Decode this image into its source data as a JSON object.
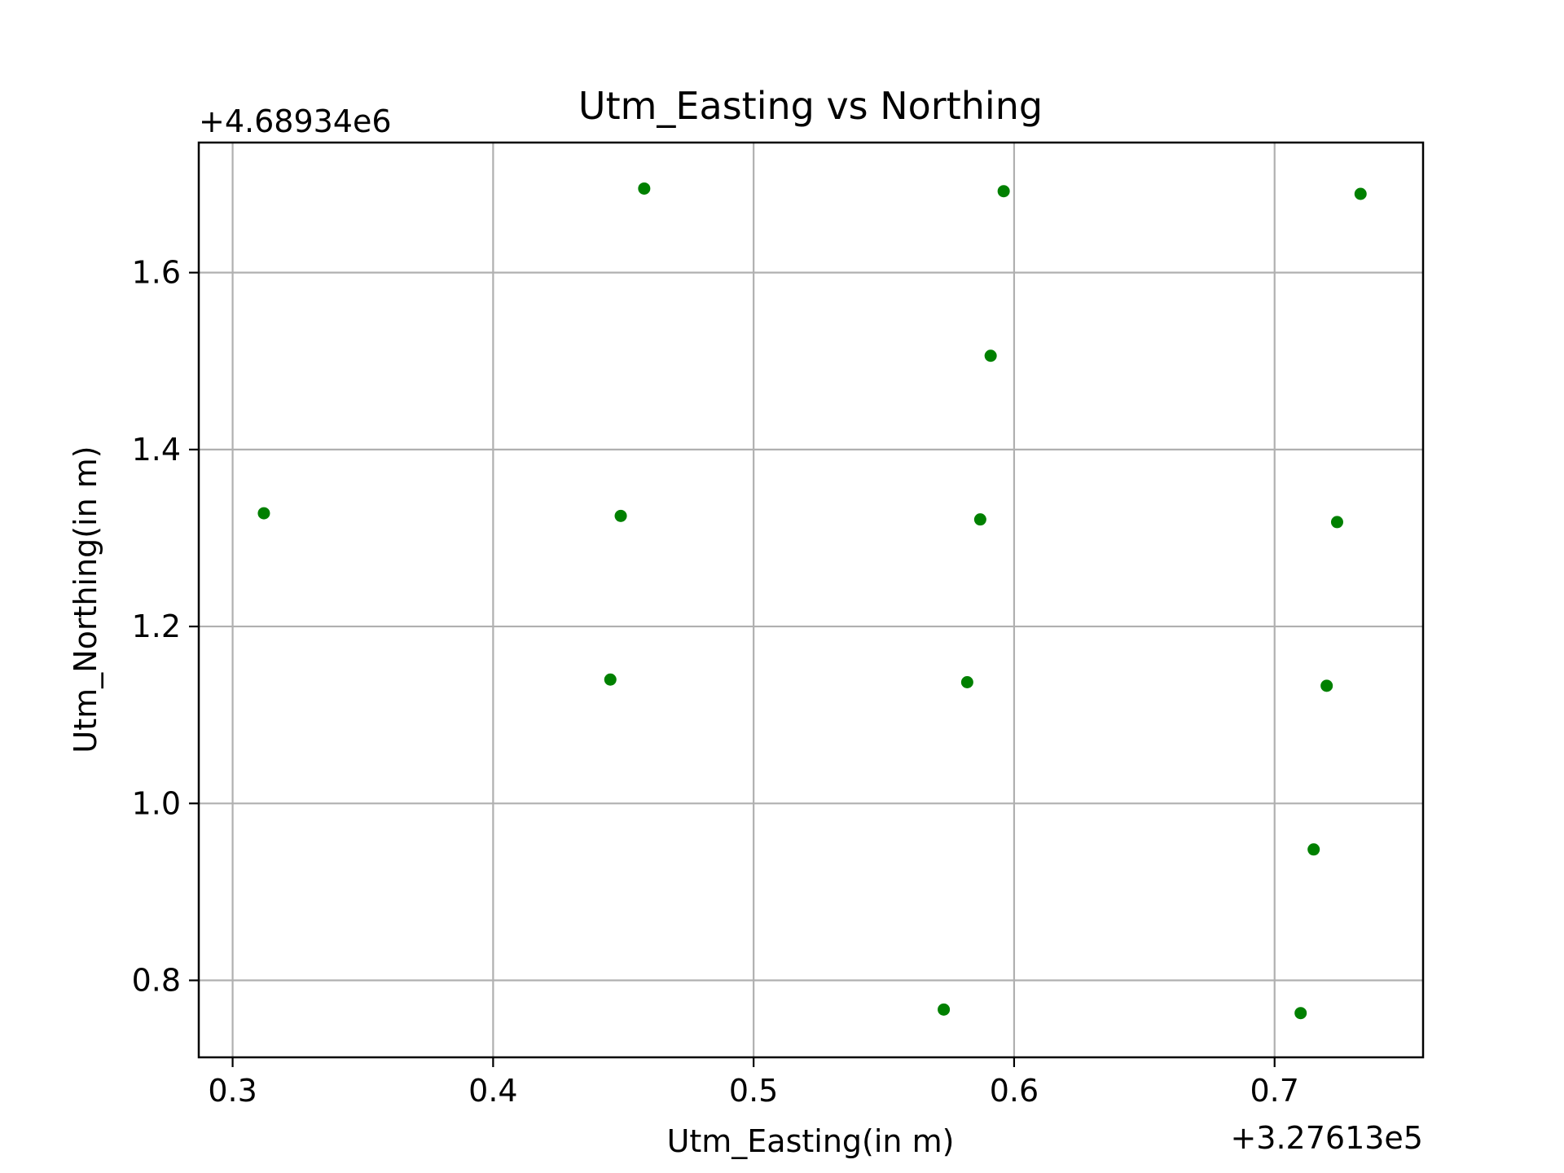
{
  "chart_data": {
    "type": "scatter",
    "title": "Utm_Easting vs Northing",
    "xlabel": "Utm_Easting(in m)",
    "ylabel": "Utm_Northing(in m)",
    "x_offset_label": "+3.27613e5",
    "y_offset_label": "+4.68934e6",
    "xlim": [
      0.287,
      0.757
    ],
    "ylim": [
      0.713,
      1.747
    ],
    "x_ticks": [
      0.3,
      0.4,
      0.5,
      0.6,
      0.7
    ],
    "x_tick_labels": [
      "0.3",
      "0.4",
      "0.5",
      "0.6",
      "0.7"
    ],
    "y_ticks": [
      0.8,
      1.0,
      1.2,
      1.4,
      1.6
    ],
    "y_tick_labels": [
      "0.8",
      "1.0",
      "1.2",
      "1.4",
      "1.6"
    ],
    "grid": true,
    "marker_color": "#008000",
    "grid_color": "#b0b0b0",
    "points": [
      {
        "x": 0.312,
        "y": 1.328
      },
      {
        "x": 0.445,
        "y": 1.14
      },
      {
        "x": 0.449,
        "y": 1.325
      },
      {
        "x": 0.458,
        "y": 1.695
      },
      {
        "x": 0.573,
        "y": 0.767
      },
      {
        "x": 0.582,
        "y": 1.137
      },
      {
        "x": 0.587,
        "y": 1.321
      },
      {
        "x": 0.591,
        "y": 1.506
      },
      {
        "x": 0.596,
        "y": 1.692
      },
      {
        "x": 0.71,
        "y": 0.763
      },
      {
        "x": 0.715,
        "y": 0.948
      },
      {
        "x": 0.72,
        "y": 1.133
      },
      {
        "x": 0.724,
        "y": 1.318
      },
      {
        "x": 0.733,
        "y": 1.689
      }
    ]
  }
}
